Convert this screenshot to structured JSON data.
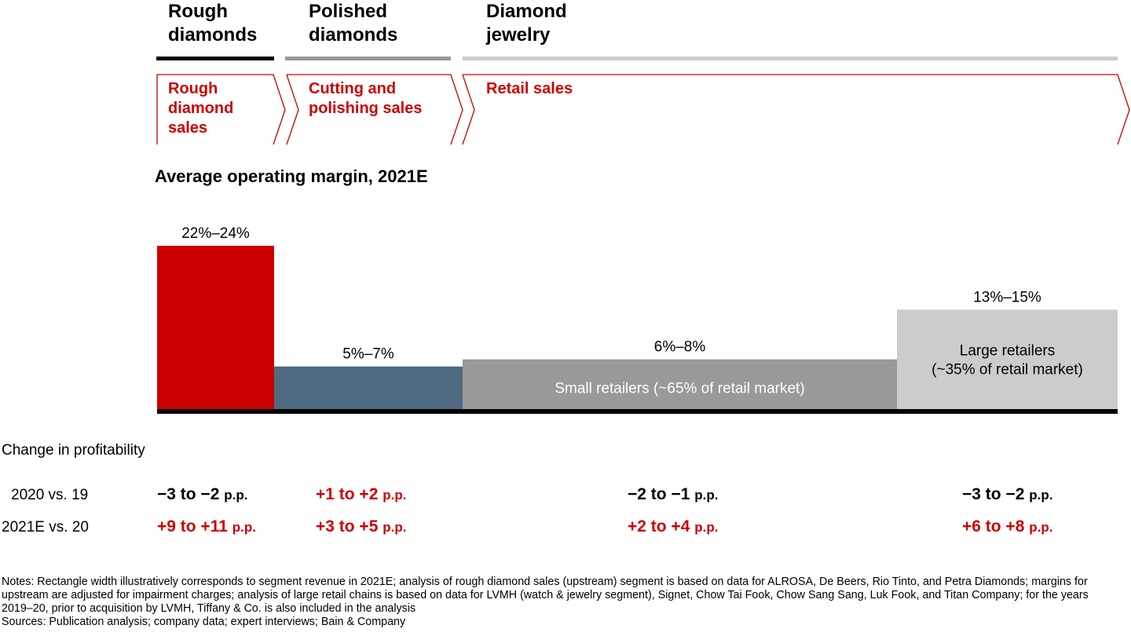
{
  "stages": [
    {
      "label_line1": "Rough",
      "label_line2": "diamonds",
      "color": "#000000"
    },
    {
      "label_line1": "Polished",
      "label_line2": "diamonds",
      "color": "#999999"
    },
    {
      "label_line1": "Diamond",
      "label_line2": "jewelry",
      "color": "#cccccc"
    }
  ],
  "chevrons": [
    {
      "lines": [
        "Rough",
        "diamond",
        "sales"
      ]
    },
    {
      "lines": [
        "Cutting and",
        "polishing sales"
      ]
    },
    {
      "lines": [
        "Retail sales"
      ]
    }
  ],
  "accent_red": "#cc0000",
  "chart_data": {
    "type": "bar",
    "title": "Average operating margin, 2021E",
    "categories": [
      "Rough diamond sales",
      "Cutting and polishing sales",
      "Small retailers (~65% of retail market)",
      "Large retailers (~35% of retail market)"
    ],
    "values": [
      23,
      6,
      7,
      14
    ],
    "value_labels": [
      "22%–24%",
      "5%–7%",
      "6%–8%",
      "13%–15%"
    ],
    "segment_labels": [
      "",
      "",
      "Small retailers (~65% of retail market)",
      "Large retailers\n(~35% of retail market)"
    ],
    "colors": [
      "#cc0000",
      "#4f6b82",
      "#999999",
      "#cccccc"
    ],
    "ylim": [
      0,
      25
    ],
    "note": "Rectangle width illustratively corresponds to segment revenue in 2021E"
  },
  "profitability": {
    "title": "Change in profitability",
    "unit": "p.p.",
    "rows": [
      {
        "label": "2020 vs. 19",
        "cells": [
          {
            "text": "−3 to −2",
            "color": "black"
          },
          {
            "text": "+1 to +2",
            "color": "red"
          },
          {
            "text": "−2 to −1",
            "color": "black"
          },
          {
            "text": "−3 to −2",
            "color": "black"
          }
        ]
      },
      {
        "label": "2021E vs. 20",
        "cells": [
          {
            "text": "+9 to +11",
            "color": "red"
          },
          {
            "text": "+3 to +5",
            "color": "red"
          },
          {
            "text": "+2 to +4",
            "color": "red"
          },
          {
            "text": "+6 to +8",
            "color": "red"
          }
        ]
      }
    ]
  },
  "notes": "Notes: Rectangle width illustratively corresponds to segment revenue in 2021E; analysis of rough diamond sales (upstream) segment is based on data for ALROSA, De Beers, Rio Tinto, and Petra Diamonds; margins for upstream are adjusted for impairment charges; analysis of large retail chains is based on data for LVMH (watch & jewelry segment), Signet, Chow Tai Fook, Chow Sang Sang, Luk Fook, and Titan Company; for the years 2019–20, prior to acquisition by LVMH, Tiffany & Co. is also included in the analysis",
  "sources": "Sources: Publication analysis; company data; expert interviews; Bain & Company"
}
